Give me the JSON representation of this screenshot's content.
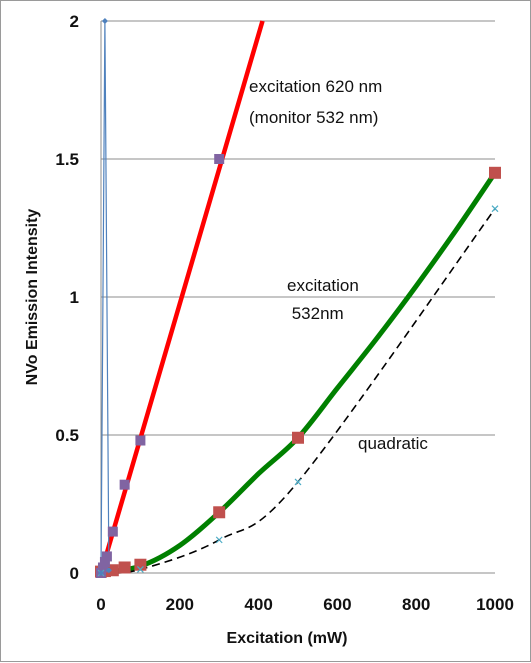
{
  "chart_data": {
    "type": "line",
    "xlabel": "Excitation (mW)",
    "ylabel": "NVo Emission  Intensity",
    "xlim": [
      0,
      1000
    ],
    "ylim": [
      0,
      2
    ],
    "x_ticks": [
      "0",
      "200",
      "400",
      "600",
      "800",
      "1000"
    ],
    "y_ticks": [
      "0",
      "0.5",
      "1",
      "1.5",
      "2"
    ],
    "grid": "horizontal",
    "series": [
      {
        "color": "#ff0000",
        "marker_color": "#8064a2",
        "marker": "square",
        "points": [
          [
            0,
            0.0
          ],
          [
            5,
            0.02
          ],
          [
            10,
            0.04
          ],
          [
            15,
            0.06
          ],
          [
            30,
            0.15
          ],
          [
            60,
            0.32
          ],
          [
            100,
            0.48
          ],
          [
            300,
            1.5
          ]
        ],
        "fit_line": [
          [
            0,
            0.0
          ],
          [
            410,
            2.0
          ]
        ]
      },
      {
        "color": "#008000",
        "marker_color": "#c0504d",
        "marker": "square",
        "points": [
          [
            0,
            0.005
          ],
          [
            10,
            0.007
          ],
          [
            30,
            0.01
          ],
          [
            60,
            0.02
          ],
          [
            100,
            0.03
          ],
          [
            300,
            0.22
          ],
          [
            500,
            0.49
          ],
          [
            1000,
            1.45
          ]
        ],
        "curve": [
          [
            0,
            0.0
          ],
          [
            100,
            0.025
          ],
          [
            200,
            0.1
          ],
          [
            300,
            0.22
          ],
          [
            400,
            0.36
          ],
          [
            500,
            0.49
          ],
          [
            600,
            0.67
          ],
          [
            700,
            0.85
          ],
          [
            800,
            1.04
          ],
          [
            900,
            1.24
          ],
          [
            1000,
            1.45
          ]
        ]
      },
      {
        "color": "#000000",
        "marker_color": "#4bacc6",
        "marker": "x",
        "dashed": true,
        "points": [
          [
            0,
            0.0
          ],
          [
            100,
            0.013
          ],
          [
            300,
            0.12
          ],
          [
            500,
            0.33
          ],
          [
            1000,
            1.32
          ]
        ]
      },
      {
        "color": "#4f81bd",
        "marker": "diamond",
        "points": [
          [
            0,
            0.0
          ],
          [
            10,
            2.0
          ],
          [
            20,
            0.01
          ]
        ]
      }
    ],
    "annotations": [
      {
        "line1": "excitation 620 nm",
        "line2": "(monitor 532 nm)"
      },
      {
        "line1": "excitation",
        "line2": " 532nm"
      },
      {
        "line1": "quadratic"
      }
    ]
  }
}
